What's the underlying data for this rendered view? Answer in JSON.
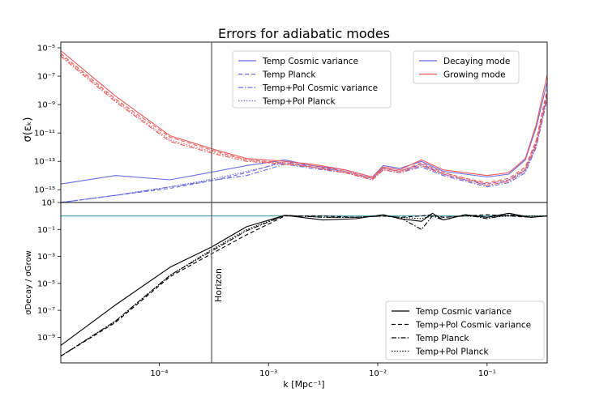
{
  "chart_data": {
    "type": "line",
    "title": "Errors for adiabatic modes",
    "xlabel": "k [Mpc⁻¹]",
    "xscale": "log",
    "xlim_log10": [
      -4.9,
      -0.45
    ],
    "x_ticks": [
      {
        "log": -4,
        "label": "10⁻⁴"
      },
      {
        "log": -3,
        "label": "10⁻³"
      },
      {
        "log": -2,
        "label": "10⁻²"
      },
      {
        "log": -1,
        "label": "10⁻¹"
      }
    ],
    "horizon": {
      "k_log10": -3.52,
      "label": "Horizon"
    },
    "top_panel": {
      "ylabel": "σ(εₖ)",
      "yscale": "log",
      "ylim_log10": [
        -15.9,
        -4.6
      ],
      "y_ticks": [
        {
          "log": -5,
          "label": "10⁻⁵"
        },
        {
          "log": -7,
          "label": "10⁻⁷"
        },
        {
          "log": -9,
          "label": "10⁻⁹"
        },
        {
          "log": -11,
          "label": "10⁻¹¹"
        },
        {
          "log": -13,
          "label": "10⁻¹³"
        },
        {
          "log": -15,
          "label": "10⁻¹⁵"
        }
      ],
      "style_legend": [
        {
          "label": "Temp Cosmic variance",
          "style": "solid"
        },
        {
          "label": "Temp Planck",
          "style": "dashed"
        },
        {
          "label": "Temp+Pol Cosmic variance",
          "style": "dashdot"
        },
        {
          "label": "Temp+Pol Planck",
          "style": "dotted"
        }
      ],
      "mode_legend": [
        {
          "label": "Decaying mode",
          "color": "#6a6ae6"
        },
        {
          "label": "Growing mode",
          "color": "#ee5a5a"
        }
      ],
      "x_log10": [
        -4.9,
        -4.4,
        -3.9,
        -3.48,
        -3.2,
        -2.85,
        -2.6,
        -2.3,
        -2.05,
        -1.95,
        -1.8,
        -1.6,
        -1.4,
        -1.2,
        -1.0,
        -0.8,
        -0.65,
        -0.55,
        -0.45
      ],
      "series": [
        {
          "name": "Decaying mode - Temp Cosmic variance",
          "color": "#6a6ae6",
          "style": "solid",
          "values_log10": [
            -14.6,
            -14.0,
            -14.3,
            -13.7,
            -13.3,
            -12.9,
            -13.3,
            -13.6,
            -14.1,
            -13.3,
            -13.5,
            -13.0,
            -13.7,
            -13.9,
            -14.1,
            -13.9,
            -12.9,
            -10.6,
            -7.4
          ]
        },
        {
          "name": "Decaying mode - Temp Planck",
          "color": "#6a6ae6",
          "style": "dashed",
          "values_log10": [
            -15.9,
            -15.4,
            -14.9,
            -14.3,
            -13.8,
            -13.0,
            -13.4,
            -13.7,
            -14.2,
            -13.5,
            -13.7,
            -13.2,
            -13.9,
            -14.3,
            -14.6,
            -14.3,
            -13.6,
            -11.7,
            -8.2
          ]
        },
        {
          "name": "Decaying mode - Temp+Pol Cosmic variance",
          "color": "#6a6ae6",
          "style": "dashdot",
          "values_log10": [
            -15.9,
            -15.4,
            -14.8,
            -14.3,
            -14.0,
            -13.2,
            -13.5,
            -13.8,
            -14.3,
            -13.6,
            -13.8,
            -13.4,
            -14.0,
            -14.4,
            -14.8,
            -14.5,
            -13.8,
            -12.0,
            -8.6
          ]
        },
        {
          "name": "Decaying mode - Temp+Pol Planck",
          "color": "#6a6ae6",
          "style": "dotted",
          "values_log10": [
            -15.9,
            -15.4,
            -14.8,
            -14.2,
            -13.7,
            -13.1,
            -13.4,
            -13.7,
            -14.2,
            -13.5,
            -13.7,
            -13.3,
            -13.9,
            -14.3,
            -14.7,
            -14.4,
            -13.7,
            -11.9,
            -8.4
          ]
        },
        {
          "name": "Growing mode - Temp Cosmic variance",
          "color": "#ee5a5a",
          "style": "solid",
          "values_log10": [
            -5.2,
            -8.4,
            -11.2,
            -12.2,
            -12.8,
            -13.0,
            -13.2,
            -13.6,
            -14.1,
            -13.4,
            -13.6,
            -12.9,
            -13.6,
            -13.8,
            -14.0,
            -13.8,
            -12.8,
            -10.4,
            -6.9
          ]
        },
        {
          "name": "Growing mode - Temp Planck",
          "color": "#ee5a5a",
          "style": "dashed",
          "values_log10": [
            -5.4,
            -8.6,
            -11.3,
            -12.3,
            -12.9,
            -13.1,
            -13.3,
            -13.7,
            -14.2,
            -13.5,
            -13.7,
            -13.1,
            -13.8,
            -14.2,
            -14.5,
            -14.2,
            -13.4,
            -11.5,
            -7.9
          ]
        },
        {
          "name": "Growing mode - Temp+Pol Cosmic variance",
          "color": "#ee5a5a",
          "style": "dashdot",
          "values_log10": [
            -5.6,
            -8.8,
            -11.6,
            -12.5,
            -13.0,
            -13.2,
            -13.4,
            -13.8,
            -14.3,
            -13.6,
            -13.8,
            -13.3,
            -13.9,
            -14.3,
            -14.7,
            -14.4,
            -13.6,
            -11.8,
            -8.4
          ]
        },
        {
          "name": "Growing mode - Temp+Pol Planck",
          "color": "#ee5a5a",
          "style": "dotted",
          "values_log10": [
            -5.5,
            -8.7,
            -11.5,
            -12.4,
            -12.9,
            -13.2,
            -13.4,
            -13.8,
            -14.2,
            -13.5,
            -13.7,
            -13.2,
            -13.8,
            -14.2,
            -14.6,
            -14.3,
            -13.5,
            -11.6,
            -8.2
          ]
        }
      ]
    },
    "bottom_panel": {
      "ylabel": "σDecay / σGrow",
      "yscale": "log",
      "ylim_log10": [
        -10.9,
        1.0
      ],
      "reference_line": {
        "log": 0,
        "color": "#2f8f9f"
      },
      "y_ticks": [
        {
          "log": 1,
          "label": "10¹"
        },
        {
          "log": -1,
          "label": "10⁻¹"
        },
        {
          "log": -3,
          "label": "10⁻³"
        },
        {
          "log": -5,
          "label": "10⁻⁵"
        },
        {
          "log": -7,
          "label": "10⁻⁷"
        },
        {
          "log": -9,
          "label": "10⁻⁹"
        }
      ],
      "legend": [
        {
          "label": "Temp Cosmic variance",
          "style": "solid"
        },
        {
          "label": "Temp+Pol Cosmic variance",
          "style": "dashed"
        },
        {
          "label": "Temp Planck",
          "style": "dashdot"
        },
        {
          "label": "Temp+Pol Planck",
          "style": "dotted"
        }
      ],
      "x_log10": [
        -4.9,
        -4.4,
        -3.9,
        -3.52,
        -3.2,
        -2.85,
        -2.5,
        -2.2,
        -1.95,
        -1.8,
        -1.6,
        -1.5,
        -1.4,
        -1.2,
        -1.0,
        -0.8,
        -0.6,
        -0.45
      ],
      "series": [
        {
          "name": "Temp Cosmic variance",
          "style": "solid",
          "values_log10": [
            -9.6,
            -6.6,
            -3.8,
            -2.3,
            -0.8,
            0.05,
            -0.3,
            -0.2,
            0.1,
            -0.2,
            -0.4,
            0.2,
            -0.3,
            0.1,
            -0.1,
            0.2,
            -0.1,
            0.0
          ]
        },
        {
          "name": "Temp+Pol Cosmic variance",
          "style": "dashed",
          "values_log10": [
            -10.4,
            -7.9,
            -4.5,
            -2.8,
            -1.4,
            0.0,
            0.0,
            -0.1,
            0.0,
            -0.1,
            0.0,
            0.1,
            -0.1,
            0.0,
            0.1,
            0.0,
            -0.1,
            0.0
          ]
        },
        {
          "name": "Temp Planck",
          "style": "dashdot",
          "values_log10": [
            -10.4,
            -7.8,
            -4.4,
            -2.6,
            -1.1,
            0.05,
            -0.1,
            -0.1,
            0.0,
            -0.1,
            -1.0,
            0.0,
            -0.3,
            0.1,
            -0.2,
            0.1,
            -0.1,
            0.0
          ]
        },
        {
          "name": "Temp+Pol Planck",
          "style": "dotted",
          "values_log10": [
            -10.4,
            -7.8,
            -4.4,
            -2.5,
            -1.0,
            0.05,
            -0.1,
            -0.1,
            0.0,
            -0.1,
            -0.2,
            0.0,
            -0.1,
            0.0,
            -0.1,
            0.0,
            0.0,
            0.0
          ]
        }
      ]
    }
  }
}
